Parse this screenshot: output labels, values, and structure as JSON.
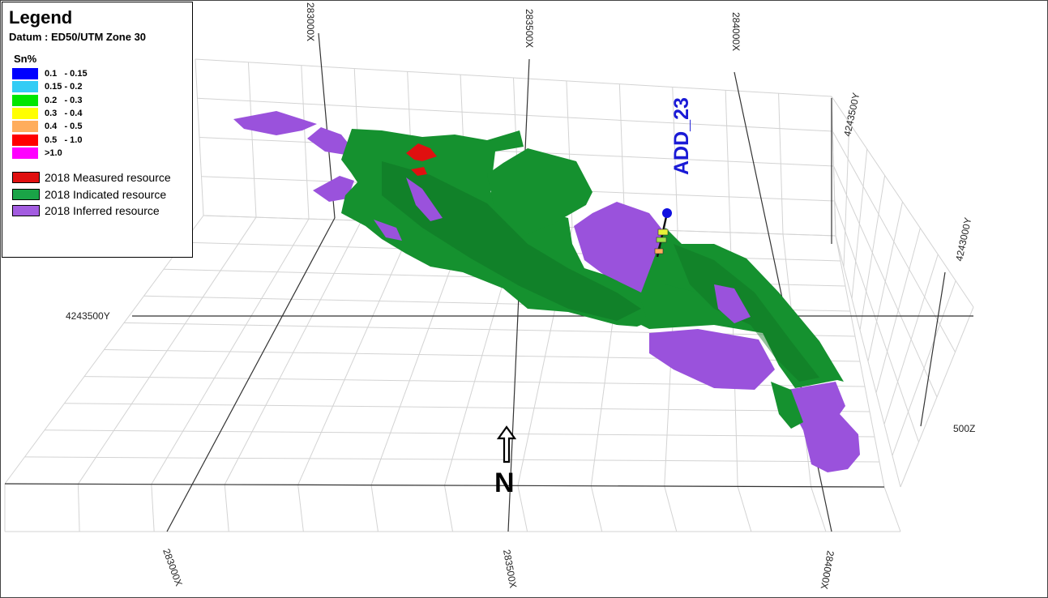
{
  "legend": {
    "title": "Legend",
    "datum": "Datum : ED50/UTM Zone 30",
    "grade_title": "Sn%",
    "grade_bins": [
      {
        "label": "0.1   - 0.15",
        "color": "#0000ff"
      },
      {
        "label": "0.15 - 0.2",
        "color": "#33ccf5"
      },
      {
        "label": "0.2   - 0.3",
        "color": "#00e600"
      },
      {
        "label": "0.3   - 0.4",
        "color": "#ffff00"
      },
      {
        "label": "0.4   - 0.5",
        "color": "#ffad5c"
      },
      {
        "label": "0.5   - 1.0",
        "color": "#ff0000"
      },
      {
        "label": ">1.0",
        "color": "#ff00ff"
      }
    ],
    "resources": [
      {
        "label": "2018 Measured resource",
        "color": "#e01010"
      },
      {
        "label": "2018 Indicated resource",
        "color": "#1aa447"
      },
      {
        "label": "2018 Inferred resource",
        "color": "#a35ce0"
      }
    ]
  },
  "axes": {
    "x_top": [
      "283000X",
      "283500X",
      "284000X"
    ],
    "x_bottom": [
      "283000X",
      "283500X",
      "284000X"
    ],
    "y_right": [
      "4243500Y",
      "4243000Y"
    ],
    "y_left": "4243500Y",
    "z": "500Z"
  },
  "drillhole": {
    "name": "ADD_23",
    "collar_color": "#1010e0"
  },
  "north_arrow": {
    "letter": "N"
  },
  "colors": {
    "indicated": "#15912f",
    "indicated_dark": "#0f7424",
    "inferred": "#9a52dc",
    "measured": "#e01010",
    "grid": "#d3d3d3",
    "axis": "#333333"
  }
}
